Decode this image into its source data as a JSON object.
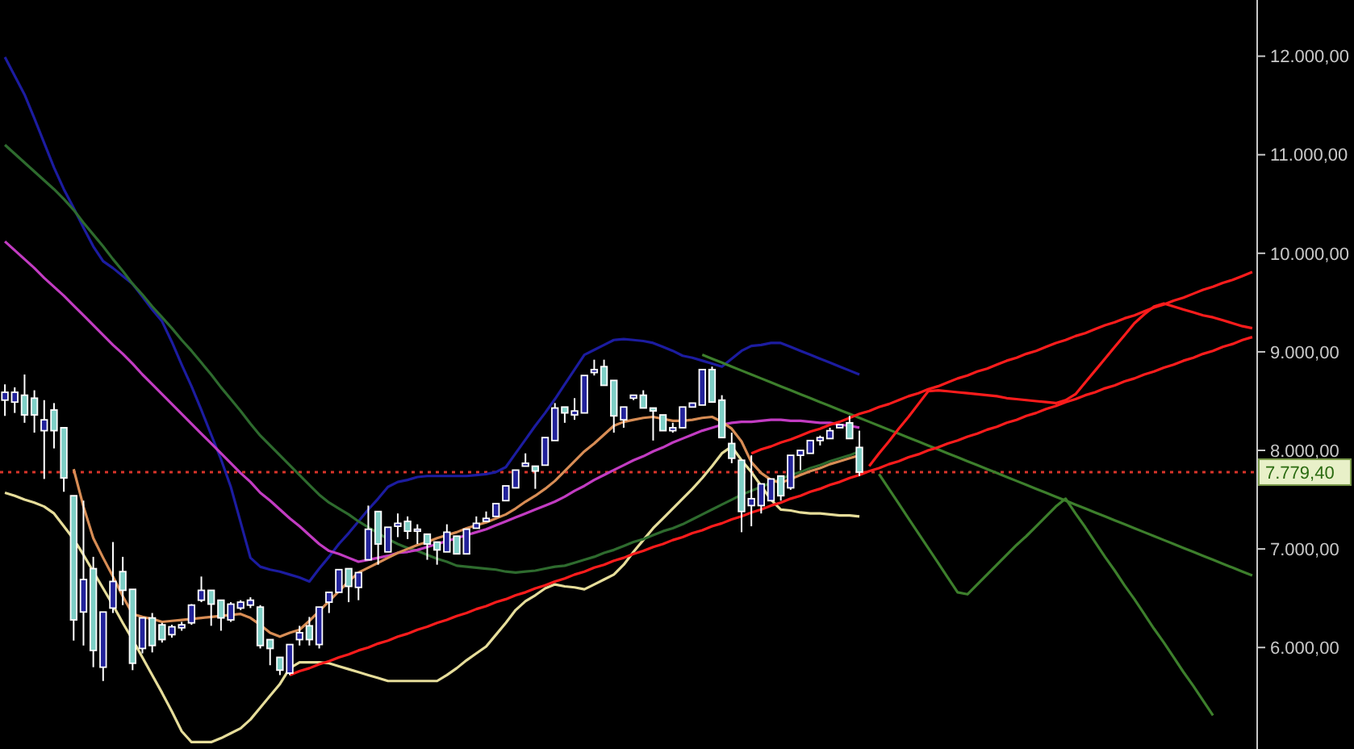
{
  "chart_data": {
    "type": "candlestick",
    "tick_labels": "y",
    "categories": [
      null,
      null,
      null,
      null,
      null,
      null,
      null,
      null,
      null,
      null,
      null,
      null,
      null,
      null,
      null,
      null,
      null,
      null,
      null,
      null,
      null,
      null,
      null,
      null,
      null,
      null,
      null,
      null,
      null,
      null,
      null,
      null,
      null,
      null,
      null,
      null,
      null,
      null,
      null,
      null,
      null,
      null,
      null,
      null,
      null,
      null,
      null,
      null,
      null,
      null,
      null,
      null,
      null,
      null,
      null,
      null,
      null,
      null,
      null,
      null,
      null,
      null,
      null,
      null,
      null,
      null,
      null,
      null,
      null,
      null,
      null,
      null,
      null,
      null,
      null,
      null,
      null,
      null,
      null,
      null,
      null,
      null,
      null,
      null,
      null,
      null,
      null,
      null,
      null,
      null,
      null,
      null,
      null,
      null,
      null,
      null,
      null,
      null,
      null,
      null,
      null,
      null,
      null,
      null,
      null,
      null,
      null,
      null,
      null,
      null,
      null,
      null,
      null,
      null,
      null,
      null,
      null,
      null,
      null,
      null,
      null,
      null,
      null,
      null,
      null,
      null,
      null,
      null
    ],
    "ylim": [
      4970,
      12570
    ],
    "yticks": [
      {
        "value": 6000,
        "label": "6.000,00"
      },
      {
        "value": 7000,
        "label": "7.000,00"
      },
      {
        "value": 8000,
        "label": "8.000,00"
      },
      {
        "value": 9000,
        "label": "9.000,00"
      },
      {
        "value": 10000,
        "label": "10.000,00"
      },
      {
        "value": 11000,
        "label": "11.000,00"
      },
      {
        "value": 12000,
        "label": "12.000,00"
      }
    ],
    "ref_lines": [
      {
        "axis": "y",
        "value": 7779.4,
        "label": "7.779,40",
        "color": "#d8342a",
        "line_style": "dotted"
      }
    ],
    "ohlc": [
      [
        8510,
        8670,
        8350,
        8590
      ],
      [
        8490,
        8640,
        8380,
        8590
      ],
      [
        8560,
        8770,
        8280,
        8360
      ],
      [
        8530,
        8610,
        8180,
        8360
      ],
      [
        8200,
        8510,
        7710,
        8310
      ],
      [
        8410,
        8480,
        8020,
        8200
      ],
      [
        8230,
        8230,
        7580,
        7720
      ],
      [
        7540,
        7540,
        6070,
        6280
      ],
      [
        6360,
        7490,
        6020,
        6690
      ],
      [
        6800,
        6920,
        5800,
        5970
      ],
      [
        5800,
        6360,
        5660,
        6360
      ],
      [
        6400,
        7070,
        6350,
        6670
      ],
      [
        6770,
        6920,
        6430,
        6580
      ],
      [
        6590,
        6590,
        5770,
        5840
      ],
      [
        5990,
        6300,
        5940,
        6300
      ],
      [
        6300,
        6350,
        5950,
        6020
      ],
      [
        6230,
        6250,
        6050,
        6080
      ],
      [
        6130,
        6230,
        6100,
        6210
      ],
      [
        6200,
        6260,
        6170,
        6230
      ],
      [
        6250,
        6440,
        6230,
        6430
      ],
      [
        6480,
        6720,
        6460,
        6580
      ],
      [
        6580,
        6580,
        6220,
        6440
      ],
      [
        6480,
        6480,
        6170,
        6300
      ],
      [
        6280,
        6460,
        6260,
        6440
      ],
      [
        6400,
        6480,
        6380,
        6460
      ],
      [
        6430,
        6510,
        6400,
        6480
      ],
      [
        6410,
        6430,
        5990,
        6020
      ],
      [
        6080,
        6080,
        5820,
        5990
      ],
      [
        5900,
        5900,
        5720,
        5770
      ],
      [
        5740,
        6030,
        5720,
        6030
      ],
      [
        6080,
        6220,
        6020,
        6150
      ],
      [
        6220,
        6310,
        6020,
        6080
      ],
      [
        6030,
        6410,
        5990,
        6410
      ],
      [
        6460,
        6560,
        6350,
        6560
      ],
      [
        6560,
        6790,
        6560,
        6790
      ],
      [
        6800,
        6800,
        6460,
        6620
      ],
      [
        6610,
        6760,
        6480,
        6760
      ],
      [
        6890,
        7440,
        6890,
        7200
      ],
      [
        7380,
        7380,
        6840,
        7050
      ],
      [
        6970,
        7220,
        6970,
        7220
      ],
      [
        7230,
        7360,
        7120,
        7260
      ],
      [
        7280,
        7330,
        7100,
        7180
      ],
      [
        7180,
        7250,
        7050,
        7200
      ],
      [
        7150,
        7150,
        6890,
        7050
      ],
      [
        7070,
        7070,
        6840,
        6990
      ],
      [
        6970,
        7250,
        6970,
        7170
      ],
      [
        7130,
        7130,
        6950,
        6950
      ],
      [
        6950,
        7200,
        6950,
        7200
      ],
      [
        7210,
        7330,
        7210,
        7260
      ],
      [
        7280,
        7380,
        7280,
        7310
      ],
      [
        7330,
        7460,
        7330,
        7460
      ],
      [
        7490,
        7640,
        7490,
        7640
      ],
      [
        7620,
        7800,
        7620,
        7800
      ],
      [
        7840,
        7970,
        7840,
        7870
      ],
      [
        7840,
        7840,
        7610,
        7790
      ],
      [
        7850,
        8130,
        7850,
        8130
      ],
      [
        8100,
        8480,
        8100,
        8430
      ],
      [
        8440,
        8440,
        8280,
        8380
      ],
      [
        8360,
        8530,
        8310,
        8400
      ],
      [
        8380,
        8760,
        8380,
        8760
      ],
      [
        8790,
        8920,
        8760,
        8820
      ],
      [
        8850,
        8920,
        8660,
        8660
      ],
      [
        8710,
        8710,
        8180,
        8350
      ],
      [
        8310,
        8440,
        8230,
        8440
      ],
      [
        8530,
        8560,
        8510,
        8560
      ],
      [
        8560,
        8610,
        8430,
        8430
      ],
      [
        8430,
        8430,
        8100,
        8400
      ],
      [
        8360,
        8360,
        8200,
        8200
      ],
      [
        8200,
        8280,
        8180,
        8230
      ],
      [
        8230,
        8440,
        8230,
        8440
      ],
      [
        8440,
        8480,
        8440,
        8480
      ],
      [
        8460,
        8820,
        8460,
        8820
      ],
      [
        8820,
        8850,
        8490,
        8490
      ],
      [
        8510,
        8560,
        8130,
        8130
      ],
      [
        8070,
        8180,
        7870,
        7920
      ],
      [
        7900,
        7900,
        7170,
        7380
      ],
      [
        7440,
        7950,
        7230,
        7510
      ],
      [
        7440,
        7660,
        7360,
        7660
      ],
      [
        7490,
        7710,
        7490,
        7710
      ],
      [
        7740,
        7740,
        7490,
        7540
      ],
      [
        7620,
        7950,
        7600,
        7950
      ],
      [
        7950,
        8000,
        7800,
        8000
      ],
      [
        7970,
        8100,
        7970,
        8100
      ],
      [
        8100,
        8150,
        8050,
        8130
      ],
      [
        8120,
        8230,
        8120,
        8200
      ],
      [
        8230,
        8260,
        8230,
        8260
      ],
      [
        8280,
        8350,
        8120,
        8120
      ],
      [
        8030,
        8200,
        7740,
        7779.4
      ],
      null,
      null,
      null,
      null,
      null,
      null,
      null,
      null,
      null,
      null,
      null,
      null,
      null,
      null,
      null,
      null,
      null,
      null,
      null,
      null,
      null,
      null,
      null,
      null,
      null,
      null,
      null,
      null,
      null,
      null,
      null,
      null,
      null,
      null,
      null,
      null,
      null,
      null,
      null,
      null
    ],
    "colors": [
      "#22229a",
      "#22229a",
      "#7ecfc6",
      "#7ecfc6",
      "#22229a",
      "#7ecfc6",
      "#7ecfc6",
      "#7ecfc6",
      "#22229a",
      "#7ecfc6",
      "#22229a",
      "#22229a",
      "#7ecfc6",
      "#7ecfc6",
      "#22229a",
      "#7ecfc6",
      "#7ecfc6",
      "#22229a",
      "#22229a",
      "#22229a",
      "#22229a",
      "#7ecfc6",
      "#7ecfc6",
      "#22229a",
      "#22229a",
      "#22229a",
      "#7ecfc6",
      "#7ecfc6",
      "#7ecfc6",
      "#22229a",
      "#22229a",
      "#7ecfc6",
      "#22229a",
      "#22229a",
      "#22229a",
      "#7ecfc6",
      "#22229a",
      "#22229a",
      "#7ecfc6",
      "#22229a",
      "#22229a",
      "#7ecfc6",
      "#22229a",
      "#7ecfc6",
      "#7ecfc6",
      "#22229a",
      "#7ecfc6",
      "#22229a",
      "#22229a",
      "#22229a",
      "#22229a",
      "#22229a",
      "#22229a",
      "#22229a",
      "#7ecfc6",
      "#22229a",
      "#22229a",
      "#7ecfc6",
      "#22229a",
      "#22229a",
      "#22229a",
      "#7ecfc6",
      "#7ecfc6",
      "#22229a",
      "#22229a",
      "#7ecfc6",
      "#7ecfc6",
      "#7ecfc6",
      "#22229a",
      "#22229a",
      "#22229a",
      "#22229a",
      "#7ecfc6",
      "#7ecfc6",
      "#7ecfc6",
      "#7ecfc6",
      "#22229a",
      "#22229a",
      "#22229a",
      "#7ecfc6",
      "#22229a",
      "#22229a",
      "#22229a",
      "#22229a",
      "#22229a",
      "#22229a",
      "#7ecfc6",
      "#7ecfc6",
      null,
      null,
      null,
      null,
      null,
      null,
      null,
      null,
      null,
      null,
      null,
      null,
      null,
      null,
      null,
      null,
      null,
      null,
      null,
      null,
      null,
      null,
      null,
      null,
      null,
      null,
      null,
      null,
      null,
      null,
      null,
      null,
      null,
      null,
      null,
      null,
      null,
      null,
      null,
      null
    ],
    "series": [
      {
        "type": "line",
        "color": "#1c1ca0",
        "values": [
          11990,
          11800,
          11610,
          11370,
          11120,
          10870,
          10650,
          10460,
          10260,
          10070,
          9920,
          9850,
          9770,
          9690,
          9560,
          9430,
          9310,
          9100,
          8870,
          8650,
          8410,
          8160,
          7910,
          7630,
          7270,
          6910,
          6820,
          6790,
          6770,
          6740,
          6710,
          6670,
          6800,
          6920,
          7050,
          7160,
          7280,
          7400,
          7510,
          7630,
          7680,
          7700,
          7730,
          7740,
          7740,
          7740,
          7740,
          7740,
          7750,
          7760,
          7780,
          7830,
          7970,
          8110,
          8250,
          8380,
          8520,
          8670,
          8820,
          8970,
          9020,
          9070,
          9120,
          9130,
          9120,
          9110,
          9090,
          9050,
          9010,
          8960,
          8940,
          8910,
          8880,
          8850,
          8930,
          9010,
          9060,
          9070,
          9090,
          9090,
          9050,
          9010,
          8970,
          8930,
          8890,
          8850,
          8810,
          8770,
          null,
          null,
          null,
          null,
          null,
          null,
          null,
          null,
          null,
          null,
          null,
          null,
          null,
          null,
          null,
          null,
          null,
          null,
          null,
          null,
          null,
          null,
          null,
          null,
          null,
          null,
          null,
          null,
          null,
          null,
          null,
          null,
          null,
          null,
          null,
          null,
          null,
          null,
          null,
          null
        ]
      },
      {
        "type": "line",
        "color": "#e6dd9a",
        "values": [
          7570,
          7540,
          7500,
          7470,
          7430,
          7360,
          7230,
          7100,
          6940,
          6770,
          6600,
          6430,
          6250,
          6080,
          5900,
          5720,
          5540,
          5350,
          5150,
          5040,
          5040,
          5040,
          5080,
          5130,
          5180,
          5270,
          5390,
          5510,
          5630,
          5790,
          5850,
          5850,
          5850,
          5840,
          5810,
          5780,
          5750,
          5720,
          5690,
          5660,
          5660,
          5660,
          5660,
          5660,
          5660,
          5720,
          5790,
          5870,
          5940,
          6010,
          6130,
          6250,
          6380,
          6470,
          6530,
          6600,
          6640,
          6620,
          6610,
          6590,
          6640,
          6690,
          6740,
          6840,
          6970,
          7090,
          7210,
          7310,
          7410,
          7510,
          7610,
          7720,
          7840,
          7970,
          8040,
          7900,
          7780,
          7640,
          7500,
          7400,
          7390,
          7370,
          7360,
          7360,
          7350,
          7340,
          7340,
          7330,
          null,
          null,
          null,
          null,
          null,
          null,
          null,
          null,
          null,
          null,
          null,
          null,
          null,
          null,
          null,
          null,
          null,
          null,
          null,
          null,
          null,
          null,
          null,
          null,
          null,
          null,
          null,
          null,
          null,
          null,
          null,
          null,
          null,
          null,
          null,
          null,
          null,
          null,
          null,
          null
        ]
      },
      {
        "type": "line",
        "color": "#2e6b2e",
        "values": [
          11100,
          11010,
          10920,
          10830,
          10740,
          10650,
          10550,
          10440,
          10310,
          10190,
          10070,
          9940,
          9820,
          9690,
          9580,
          9460,
          9350,
          9240,
          9120,
          9010,
          8890,
          8770,
          8640,
          8520,
          8400,
          8270,
          8150,
          8050,
          7950,
          7850,
          7750,
          7650,
          7550,
          7470,
          7410,
          7350,
          7280,
          7220,
          7160,
          7100,
          7050,
          7010,
          6980,
          6940,
          6900,
          6870,
          6830,
          6820,
          6810,
          6800,
          6790,
          6770,
          6760,
          6770,
          6780,
          6800,
          6820,
          6830,
          6860,
          6890,
          6920,
          6960,
          6990,
          7030,
          7070,
          7100,
          7140,
          7180,
          7210,
          7250,
          7300,
          7350,
          7400,
          7450,
          7500,
          7550,
          7590,
          7630,
          7670,
          7710,
          7750,
          7780,
          7820,
          7850,
          7890,
          7920,
          7950,
          7990,
          null,
          null,
          null,
          null,
          null,
          null,
          null,
          null,
          null,
          null,
          null,
          null,
          null,
          null,
          null,
          null,
          null,
          null,
          null,
          null,
          null,
          null,
          null,
          null,
          null,
          null,
          null,
          null,
          null,
          null,
          null,
          null,
          null,
          null,
          null,
          null,
          null,
          null,
          null,
          null
        ]
      },
      {
        "type": "line",
        "color": "#c23cc2",
        "values": [
          10120,
          10030,
          9940,
          9850,
          9750,
          9660,
          9570,
          9470,
          9370,
          9270,
          9170,
          9070,
          8980,
          8880,
          8770,
          8670,
          8570,
          8470,
          8370,
          8270,
          8170,
          8070,
          7970,
          7870,
          7770,
          7680,
          7570,
          7490,
          7400,
          7310,
          7230,
          7140,
          7050,
          6980,
          6950,
          6910,
          6870,
          6890,
          6910,
          6930,
          6960,
          6970,
          6990,
          7020,
          7050,
          7080,
          7110,
          7140,
          7170,
          7200,
          7240,
          7280,
          7320,
          7360,
          7400,
          7440,
          7480,
          7530,
          7590,
          7640,
          7700,
          7750,
          7800,
          7850,
          7900,
          7940,
          7990,
          8030,
          8080,
          8120,
          8160,
          8200,
          8230,
          8260,
          8280,
          8290,
          8290,
          8300,
          8310,
          8310,
          8300,
          8300,
          8290,
          8280,
          8280,
          8260,
          8250,
          8230,
          null,
          null,
          null,
          null,
          null,
          null,
          null,
          null,
          null,
          null,
          null,
          null,
          null,
          null,
          null,
          null,
          null,
          null,
          null,
          null,
          null,
          null,
          null,
          null,
          null,
          null,
          null,
          null,
          null,
          null,
          null,
          null,
          null,
          null,
          null,
          null,
          null,
          null,
          null,
          null
        ]
      },
      {
        "type": "line",
        "color": "#d88d55",
        "values": [
          null,
          null,
          null,
          null,
          null,
          null,
          null,
          7810,
          7430,
          7110,
          6910,
          6720,
          6520,
          6340,
          6310,
          6290,
          6260,
          6270,
          6280,
          6290,
          6300,
          6310,
          6320,
          6330,
          6340,
          6300,
          6230,
          6150,
          6110,
          6150,
          6180,
          6270,
          6370,
          6470,
          6570,
          6670,
          6760,
          6810,
          6860,
          6910,
          6960,
          7000,
          7040,
          7070,
          7110,
          7140,
          7170,
          7210,
          7240,
          7270,
          7310,
          7350,
          7410,
          7480,
          7540,
          7610,
          7690,
          7790,
          7890,
          7990,
          8070,
          8160,
          8250,
          8290,
          8310,
          8330,
          8340,
          8320,
          8300,
          8300,
          8310,
          8330,
          8340,
          8290,
          8220,
          8090,
          7880,
          7770,
          7700,
          7670,
          7710,
          7750,
          7790,
          7820,
          7860,
          7890,
          7920,
          7950,
          null,
          null,
          null,
          null,
          null,
          null,
          null,
          null,
          null,
          null,
          null,
          null,
          null,
          null,
          null,
          null,
          null,
          null,
          null,
          null,
          null,
          null,
          null,
          null,
          null,
          null,
          null,
          null,
          null,
          null,
          null,
          null,
          null,
          null,
          null,
          null,
          null,
          null,
          null,
          null
        ]
      },
      {
        "type": "line",
        "color": "#3d7f2c",
        "values": [
          null,
          null,
          null,
          null,
          null,
          null,
          null,
          null,
          null,
          null,
          null,
          null,
          null,
          null,
          null,
          null,
          null,
          null,
          null,
          null,
          null,
          null,
          null,
          null,
          null,
          null,
          null,
          null,
          null,
          null,
          null,
          null,
          null,
          null,
          null,
          null,
          null,
          null,
          null,
          null,
          null,
          null,
          null,
          null,
          null,
          null,
          null,
          null,
          null,
          null,
          null,
          null,
          null,
          null,
          null,
          null,
          null,
          null,
          null,
          null,
          null,
          null,
          null,
          null,
          null,
          null,
          null,
          null,
          null,
          null,
          null,
          8970,
          8930,
          8890,
          8850,
          8810,
          8770,
          8730,
          8690,
          8650,
          8610,
          8570,
          8530,
          8490,
          8450,
          8410,
          8370,
          8330,
          8290,
          8250,
          8210,
          8170,
          8130,
          8090,
          8050,
          8010,
          7970,
          7930,
          7890,
          7850,
          7810,
          7770,
          7730,
          7690,
          7650,
          7610,
          7570,
          7530,
          7490,
          7450,
          7410,
          7370,
          7330,
          7290,
          7250,
          7210,
          7170,
          7130,
          7090,
          7050,
          7010,
          6970,
          6930,
          6890,
          6850,
          6810,
          6770,
          6730
        ]
      },
      {
        "type": "line",
        "color": "#3d7f2c",
        "values": [
          null,
          null,
          null,
          null,
          null,
          null,
          null,
          null,
          null,
          null,
          null,
          null,
          null,
          null,
          null,
          null,
          null,
          null,
          null,
          null,
          null,
          null,
          null,
          null,
          null,
          null,
          null,
          null,
          null,
          null,
          null,
          null,
          null,
          null,
          null,
          null,
          null,
          null,
          null,
          null,
          null,
          null,
          null,
          null,
          null,
          null,
          null,
          null,
          null,
          null,
          null,
          null,
          null,
          null,
          null,
          null,
          null,
          null,
          null,
          null,
          null,
          null,
          null,
          null,
          null,
          null,
          null,
          null,
          null,
          null,
          null,
          null,
          null,
          null,
          null,
          null,
          null,
          null,
          null,
          null,
          null,
          null,
          null,
          null,
          null,
          null,
          null,
          null,
          null,
          7760,
          7610,
          7460,
          7310,
          7160,
          7010,
          6860,
          6710,
          6560,
          6540,
          6640,
          6740,
          6840,
          6940,
          7040,
          7130,
          7230,
          7330,
          7430,
          7510,
          7360,
          7220,
          7070,
          6920,
          6780,
          6630,
          6490,
          6340,
          6190,
          6050,
          5900,
          5750,
          5610,
          5460,
          5310,
          null,
          null,
          null,
          null
        ]
      },
      {
        "type": "line",
        "color": "#ff1c1c",
        "values": [
          null,
          null,
          null,
          null,
          null,
          null,
          null,
          null,
          null,
          null,
          null,
          null,
          null,
          null,
          null,
          null,
          null,
          null,
          null,
          null,
          null,
          null,
          null,
          null,
          null,
          null,
          null,
          null,
          null,
          5720,
          5760,
          5790,
          5830,
          5860,
          5900,
          5930,
          5970,
          6000,
          6040,
          6070,
          6110,
          6140,
          6180,
          6210,
          6250,
          6280,
          6320,
          6350,
          6390,
          6420,
          6460,
          6490,
          6530,
          6560,
          6600,
          6630,
          6670,
          6700,
          6740,
          6770,
          6810,
          6840,
          6880,
          6910,
          6950,
          6980,
          7020,
          7050,
          7090,
          7120,
          7160,
          7190,
          7230,
          7260,
          7300,
          7330,
          7370,
          7400,
          7440,
          7470,
          7510,
          7540,
          7580,
          7610,
          7650,
          7680,
          7720,
          7750,
          7790,
          7820,
          7860,
          7890,
          7930,
          7960,
          8000,
          8030,
          8070,
          8100,
          8140,
          8170,
          8210,
          8240,
          8280,
          8310,
          8350,
          8380,
          8420,
          8450,
          8490,
          8520,
          8560,
          8590,
          8630,
          8660,
          8700,
          8730,
          8770,
          8800,
          8840,
          8870,
          8910,
          8940,
          8980,
          9010,
          9050,
          9080,
          9120,
          9150
        ]
      },
      {
        "type": "line",
        "color": "#ff1c1c",
        "values": [
          null,
          null,
          null,
          null,
          null,
          null,
          null,
          null,
          null,
          null,
          null,
          null,
          null,
          null,
          null,
          null,
          null,
          null,
          null,
          null,
          null,
          null,
          null,
          null,
          null,
          null,
          null,
          null,
          null,
          null,
          null,
          null,
          null,
          null,
          null,
          null,
          null,
          null,
          null,
          null,
          null,
          null,
          null,
          null,
          null,
          null,
          null,
          null,
          null,
          null,
          null,
          null,
          null,
          null,
          null,
          null,
          null,
          null,
          null,
          null,
          null,
          null,
          null,
          null,
          null,
          null,
          null,
          null,
          null,
          null,
          null,
          null,
          null,
          null,
          null,
          null,
          7970,
          8010,
          8040,
          8080,
          8110,
          8150,
          8190,
          8220,
          8260,
          8290,
          8330,
          8370,
          8400,
          8440,
          8470,
          8510,
          8550,
          8580,
          8620,
          8650,
          8690,
          8730,
          8760,
          8800,
          8830,
          8870,
          8910,
          8940,
          8980,
          9010,
          9050,
          9090,
          9120,
          9160,
          9190,
          9230,
          9270,
          9300,
          9340,
          9370,
          9410,
          9450,
          9480,
          9520,
          9550,
          9590,
          9630,
          9660,
          9700,
          9730,
          9770,
          9810
        ]
      },
      {
        "type": "line",
        "color": "#ff1c1c",
        "values": [
          null,
          null,
          null,
          null,
          null,
          null,
          null,
          null,
          null,
          null,
          null,
          null,
          null,
          null,
          null,
          null,
          null,
          null,
          null,
          null,
          null,
          null,
          null,
          null,
          null,
          null,
          null,
          null,
          null,
          null,
          null,
          null,
          null,
          null,
          null,
          null,
          null,
          null,
          null,
          null,
          null,
          null,
          null,
          null,
          null,
          null,
          null,
          null,
          null,
          null,
          null,
          null,
          null,
          null,
          null,
          null,
          null,
          null,
          null,
          null,
          null,
          null,
          null,
          null,
          null,
          null,
          null,
          null,
          null,
          null,
          null,
          null,
          null,
          null,
          null,
          null,
          null,
          null,
          null,
          null,
          null,
          null,
          null,
          null,
          null,
          null,
          null,
          null,
          7840,
          7970,
          8090,
          8220,
          8340,
          8470,
          8600,
          8610,
          8600,
          8590,
          8580,
          8570,
          8560,
          8550,
          8530,
          8520,
          8510,
          8500,
          8490,
          8480,
          8510,
          8570,
          8690,
          8810,
          8930,
          9050,
          9170,
          9290,
          9380,
          9460,
          9490,
          9460,
          9430,
          9400,
          9370,
          9350,
          9320,
          9290,
          9260,
          9240
        ]
      }
    ]
  }
}
